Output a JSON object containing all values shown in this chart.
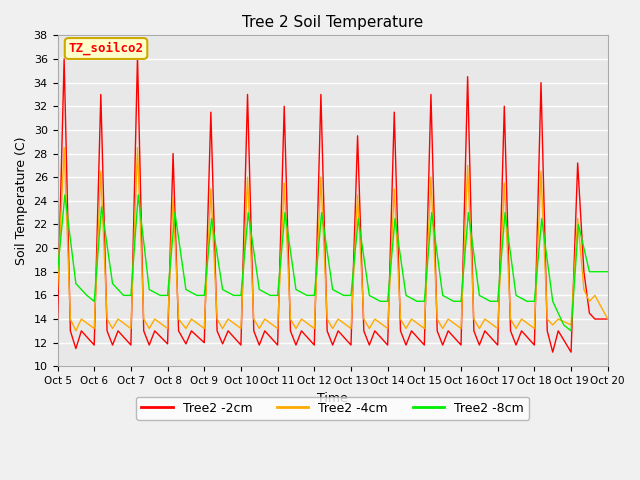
{
  "title": "Tree 2 Soil Temperature",
  "xlabel": "Time",
  "ylabel": "Soil Temperature (C)",
  "ylim": [
    10,
    38
  ],
  "annotation_text": "TZ_soilco2",
  "annotation_bg": "#ffffcc",
  "annotation_border": "#ccaa00",
  "plot_bg": "#e8e8e8",
  "fig_bg": "#f0f0f0",
  "legend_labels": [
    "Tree2 -2cm",
    "Tree2 -4cm",
    "Tree2 -8cm"
  ],
  "legend_colors": [
    "#ff0000",
    "#ffaa00",
    "#00ee00"
  ],
  "x_tick_labels": [
    "Oct 5",
    "Oct 6",
    "Oct 7",
    "Oct 8",
    "Oct 9",
    "Oct 10",
    "Oct 11",
    "Oct 12",
    "Oct 13",
    "Oct 14",
    "Oct 15",
    "Oct 16",
    "Oct 17",
    "Oct 18",
    "Oct 19",
    "Oct 20"
  ],
  "series_2cm_x": [
    0.0,
    0.18,
    0.35,
    0.5,
    0.65,
    1.0,
    1.18,
    1.35,
    1.5,
    1.65,
    2.0,
    2.18,
    2.35,
    2.5,
    2.65,
    3.0,
    3.15,
    3.3,
    3.5,
    3.65,
    4.0,
    4.18,
    4.35,
    4.5,
    4.65,
    5.0,
    5.18,
    5.35,
    5.5,
    5.65,
    6.0,
    6.18,
    6.35,
    6.5,
    6.65,
    7.0,
    7.18,
    7.35,
    7.5,
    7.65,
    8.0,
    8.18,
    8.35,
    8.5,
    8.65,
    9.0,
    9.18,
    9.35,
    9.5,
    9.65,
    10.0,
    10.18,
    10.35,
    10.5,
    10.65,
    11.0,
    11.18,
    11.35,
    11.5,
    11.65,
    12.0,
    12.18,
    12.35,
    12.5,
    12.65,
    13.0,
    13.18,
    13.35,
    13.5,
    13.65,
    14.0,
    14.18,
    14.35,
    14.5,
    14.65,
    15.0
  ],
  "series_2cm_y": [
    14.0,
    36.0,
    13.0,
    11.5,
    13.0,
    11.8,
    33.0,
    13.0,
    11.8,
    13.0,
    11.8,
    36.2,
    13.0,
    11.8,
    13.0,
    11.9,
    28.0,
    13.0,
    11.9,
    13.0,
    12.0,
    31.5,
    13.0,
    11.9,
    13.0,
    11.8,
    33.0,
    13.0,
    11.8,
    13.0,
    11.8,
    32.0,
    13.0,
    11.8,
    13.0,
    11.8,
    33.0,
    13.0,
    11.8,
    13.0,
    11.8,
    29.5,
    13.0,
    11.8,
    13.0,
    11.8,
    31.5,
    13.0,
    11.8,
    13.0,
    11.8,
    33.0,
    13.0,
    11.8,
    13.0,
    11.8,
    34.5,
    13.0,
    11.8,
    13.0,
    11.8,
    32.0,
    13.0,
    11.8,
    13.0,
    11.8,
    34.0,
    13.0,
    11.2,
    13.0,
    11.2,
    27.2,
    18.0,
    14.5,
    14.0,
    14.0
  ],
  "series_4cm_x": [
    0.0,
    0.18,
    0.35,
    0.5,
    0.65,
    1.0,
    1.18,
    1.35,
    1.5,
    1.65,
    2.0,
    2.18,
    2.35,
    2.5,
    2.65,
    3.0,
    3.15,
    3.3,
    3.5,
    3.65,
    4.0,
    4.18,
    4.35,
    4.5,
    4.65,
    5.0,
    5.18,
    5.35,
    5.5,
    5.65,
    6.0,
    6.18,
    6.35,
    6.5,
    6.65,
    7.0,
    7.18,
    7.35,
    7.5,
    7.65,
    8.0,
    8.18,
    8.35,
    8.5,
    8.65,
    9.0,
    9.18,
    9.35,
    9.5,
    9.65,
    10.0,
    10.18,
    10.35,
    10.5,
    10.65,
    11.0,
    11.18,
    11.35,
    11.5,
    11.65,
    12.0,
    12.18,
    12.35,
    12.5,
    12.65,
    13.0,
    13.18,
    13.35,
    13.5,
    13.65,
    14.0,
    14.18,
    14.35,
    14.5,
    14.65,
    15.0
  ],
  "series_4cm_y": [
    16.5,
    28.5,
    14.0,
    13.0,
    14.0,
    13.2,
    26.5,
    14.0,
    13.2,
    14.0,
    13.2,
    28.5,
    14.0,
    13.2,
    14.0,
    13.2,
    24.3,
    14.0,
    13.2,
    14.0,
    13.2,
    25.0,
    14.0,
    13.2,
    14.0,
    13.2,
    26.0,
    14.0,
    13.2,
    14.0,
    13.2,
    25.5,
    14.0,
    13.2,
    14.0,
    13.2,
    26.0,
    14.0,
    13.2,
    14.0,
    13.2,
    24.5,
    14.0,
    13.2,
    14.0,
    13.2,
    25.0,
    14.0,
    13.2,
    14.0,
    13.2,
    26.0,
    14.0,
    13.2,
    14.0,
    13.2,
    27.0,
    14.0,
    13.2,
    14.0,
    13.2,
    25.5,
    14.0,
    13.2,
    14.0,
    13.2,
    26.5,
    14.0,
    13.5,
    14.0,
    13.5,
    22.5,
    16.5,
    15.5,
    16.0,
    14.0
  ],
  "series_8cm_x": [
    0.0,
    0.2,
    0.5,
    0.8,
    1.0,
    1.2,
    1.5,
    1.8,
    2.0,
    2.2,
    2.5,
    2.8,
    3.0,
    3.2,
    3.5,
    3.8,
    4.0,
    4.2,
    4.5,
    4.8,
    5.0,
    5.2,
    5.5,
    5.8,
    6.0,
    6.2,
    6.5,
    6.8,
    7.0,
    7.2,
    7.5,
    7.8,
    8.0,
    8.2,
    8.5,
    8.8,
    9.0,
    9.2,
    9.5,
    9.8,
    10.0,
    10.2,
    10.5,
    10.8,
    11.0,
    11.2,
    11.5,
    11.8,
    12.0,
    12.2,
    12.5,
    12.8,
    13.0,
    13.2,
    13.5,
    13.8,
    14.0,
    14.2,
    14.5,
    14.8,
    15.0
  ],
  "series_8cm_y": [
    18.0,
    24.5,
    17.0,
    16.0,
    15.5,
    23.5,
    17.0,
    16.0,
    16.0,
    24.5,
    16.5,
    16.0,
    16.0,
    23.0,
    16.5,
    16.0,
    16.0,
    22.5,
    16.5,
    16.0,
    16.0,
    23.0,
    16.5,
    16.0,
    16.0,
    23.0,
    16.5,
    16.0,
    16.0,
    23.0,
    16.5,
    16.0,
    16.0,
    22.5,
    16.0,
    15.5,
    15.5,
    22.5,
    16.0,
    15.5,
    15.5,
    23.0,
    16.0,
    15.5,
    15.5,
    23.0,
    16.0,
    15.5,
    15.5,
    23.0,
    16.0,
    15.5,
    15.5,
    22.5,
    15.5,
    13.5,
    13.0,
    22.0,
    18.0,
    18.0,
    18.0
  ]
}
